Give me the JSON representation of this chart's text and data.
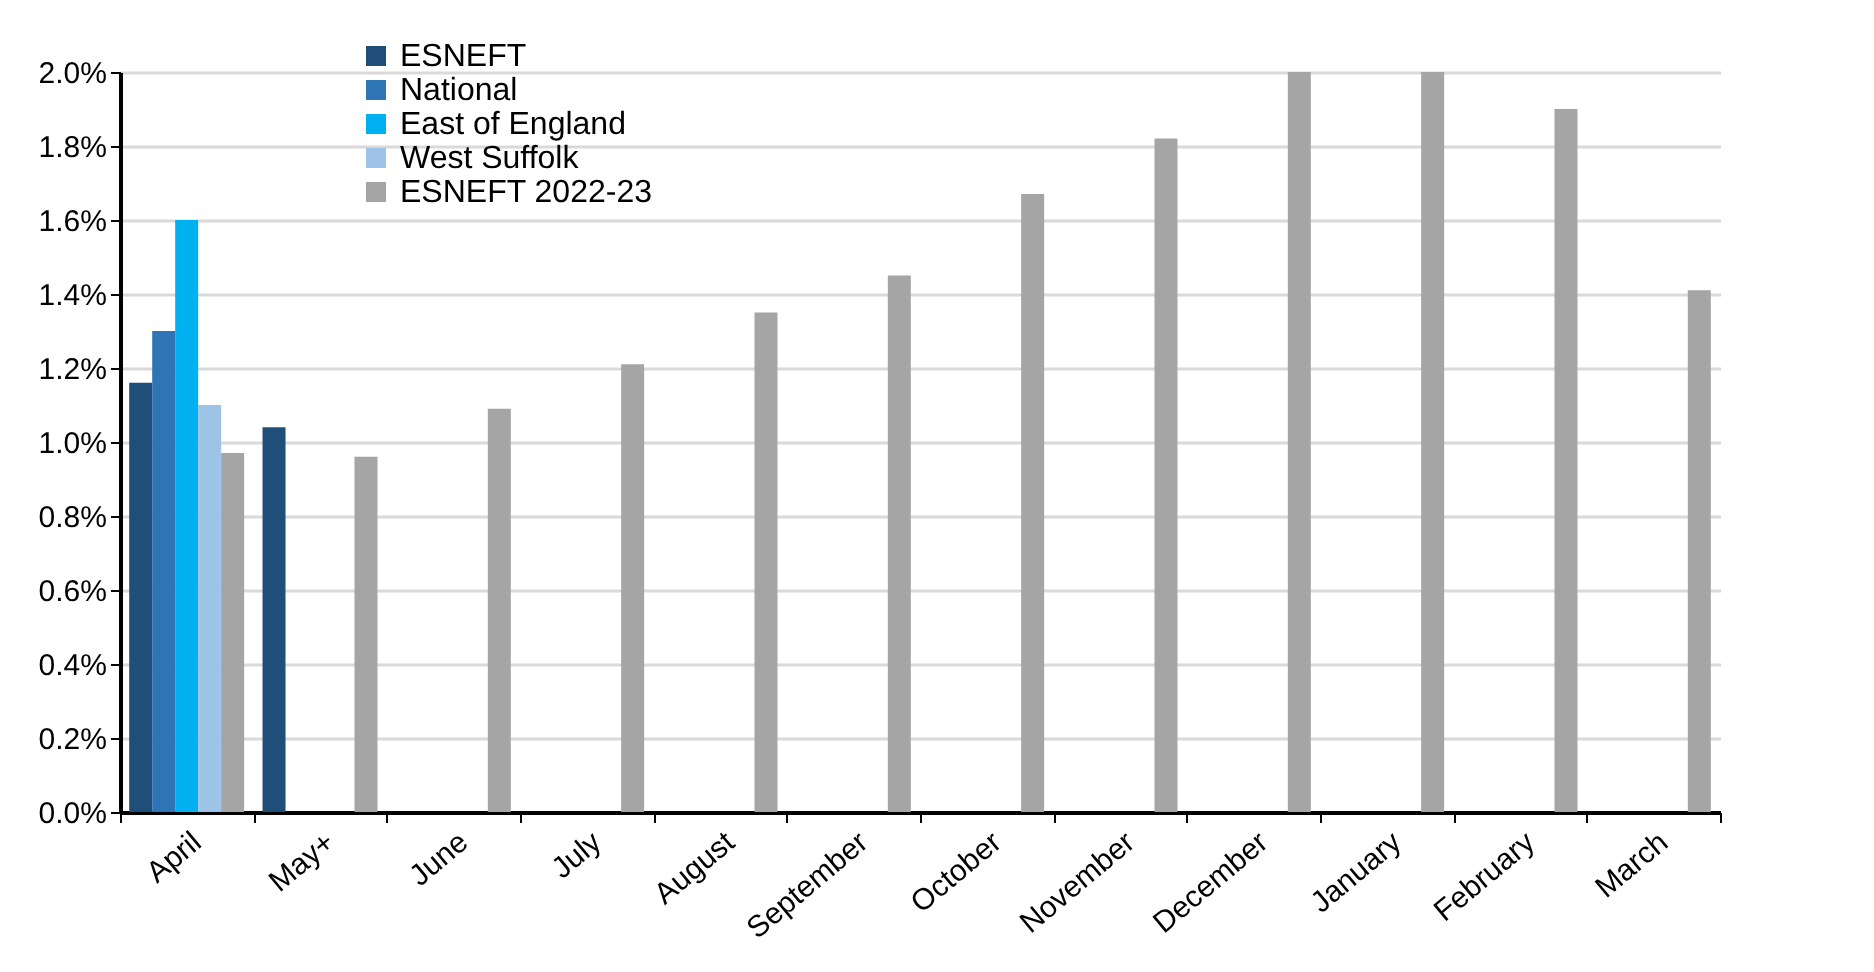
{
  "chart_data": {
    "type": "bar",
    "categories": [
      "April",
      "May+",
      "June",
      "July",
      "August",
      "September",
      "October",
      "November",
      "December",
      "January",
      "February",
      "March"
    ],
    "series": [
      {
        "name": "ESNEFT",
        "color": "#1f4e79",
        "values": [
          1.16,
          1.04,
          null,
          null,
          null,
          null,
          null,
          null,
          null,
          null,
          null,
          null
        ]
      },
      {
        "name": "National",
        "color": "#2e75b6",
        "values": [
          1.3,
          null,
          null,
          null,
          null,
          null,
          null,
          null,
          null,
          null,
          null,
          null
        ]
      },
      {
        "name": "East of England",
        "color": "#00b0f0",
        "values": [
          1.6,
          null,
          null,
          null,
          null,
          null,
          null,
          null,
          null,
          null,
          null,
          null
        ]
      },
      {
        "name": "West Suffolk",
        "color": "#9dc3e6",
        "values": [
          1.1,
          null,
          null,
          null,
          null,
          null,
          null,
          null,
          null,
          null,
          null,
          null
        ]
      },
      {
        "name": "ESNEFT 2022-23",
        "color": "#a5a5a5",
        "values": [
          0.97,
          0.96,
          1.09,
          1.21,
          1.35,
          1.45,
          1.67,
          1.82,
          2.0,
          2.0,
          1.9,
          1.41
        ]
      }
    ],
    "ylim": [
      0,
      2
    ],
    "yticks": [
      {
        "value": 0,
        "label": "0.0%"
      },
      {
        "value": 0.2,
        "label": "0.2%"
      },
      {
        "value": 0.4,
        "label": "0.4%"
      },
      {
        "value": 0.6,
        "label": "0.6%"
      },
      {
        "value": 0.8,
        "label": "0.8%"
      },
      {
        "value": 1.0,
        "label": "1.0%"
      },
      {
        "value": 1.2,
        "label": "1.2%"
      },
      {
        "value": 1.4,
        "label": "1.4%"
      },
      {
        "value": 1.6,
        "label": "1.6%"
      },
      {
        "value": 1.8,
        "label": "1.8%"
      },
      {
        "value": 2.0,
        "label": "2.0%"
      }
    ],
    "grid": "y",
    "legend": "top"
  }
}
